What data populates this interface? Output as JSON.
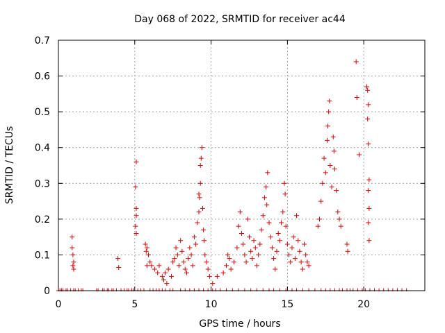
{
  "chart_data": {
    "type": "scatter",
    "title": "Day 068 of 2022, SRMTID for receiver ac44",
    "xlabel": "GPS time / hours",
    "ylabel": "SRMTID / TECUs",
    "xlim": [
      0,
      24
    ],
    "ylim": [
      0,
      0.7
    ],
    "xticks": [
      0,
      5,
      10,
      15,
      20
    ],
    "yticks": [
      0,
      0.1,
      0.2,
      0.3,
      0.4,
      0.5,
      0.6,
      0.7
    ],
    "xtick_labels": [
      "0",
      "5",
      "10",
      "15",
      "20"
    ],
    "ytick_labels": [
      "0",
      "0.1",
      "0.2",
      "0.3",
      "0.4",
      "0.5",
      "0.6",
      "0.7"
    ],
    "grid": true,
    "marker": "plus",
    "color": "#e00000",
    "series": [
      {
        "name": "SRMTID",
        "points": [
          [
            0.9,
            0.15
          ],
          [
            0.9,
            0.12
          ],
          [
            0.95,
            0.1
          ],
          [
            1.0,
            0.08
          ],
          [
            0.95,
            0.07
          ],
          [
            1.0,
            0.06
          ],
          [
            3.9,
            0.09
          ],
          [
            3.95,
            0.065
          ],
          [
            5.1,
            0.36
          ],
          [
            5.05,
            0.29
          ],
          [
            5.1,
            0.23
          ],
          [
            5.1,
            0.21
          ],
          [
            5.05,
            0.18
          ],
          [
            5.1,
            0.16
          ],
          [
            5.7,
            0.13
          ],
          [
            5.8,
            0.12
          ],
          [
            5.75,
            0.11
          ],
          [
            5.9,
            0.1
          ],
          [
            6.0,
            0.08
          ],
          [
            5.8,
            0.07
          ],
          [
            6.1,
            0.07
          ],
          [
            6.3,
            0.06
          ],
          [
            6.5,
            0.05
          ],
          [
            6.6,
            0.07
          ],
          [
            6.8,
            0.04
          ],
          [
            6.9,
            0.03
          ],
          [
            7.0,
            0.05
          ],
          [
            7.1,
            0.02
          ],
          [
            7.2,
            0.06
          ],
          [
            7.4,
            0.04
          ],
          [
            7.5,
            0.08
          ],
          [
            7.6,
            0.09
          ],
          [
            7.7,
            0.12
          ],
          [
            7.8,
            0.1
          ],
          [
            7.9,
            0.07
          ],
          [
            8.0,
            0.14
          ],
          [
            8.1,
            0.11
          ],
          [
            8.2,
            0.08
          ],
          [
            8.3,
            0.06
          ],
          [
            8.4,
            0.05
          ],
          [
            8.5,
            0.09
          ],
          [
            8.6,
            0.12
          ],
          [
            8.7,
            0.1
          ],
          [
            8.8,
            0.07
          ],
          [
            8.9,
            0.15
          ],
          [
            9.0,
            0.13
          ],
          [
            9.1,
            0.19
          ],
          [
            9.2,
            0.22
          ],
          [
            9.25,
            0.26
          ],
          [
            9.3,
            0.3
          ],
          [
            9.35,
            0.37
          ],
          [
            9.4,
            0.4
          ],
          [
            9.3,
            0.35
          ],
          [
            9.2,
            0.27
          ],
          [
            9.45,
            0.23
          ],
          [
            9.5,
            0.17
          ],
          [
            9.55,
            0.14
          ],
          [
            9.6,
            0.1
          ],
          [
            9.7,
            0.08
          ],
          [
            9.8,
            0.06
          ],
          [
            9.9,
            0.04
          ],
          [
            10.1,
            0.02
          ],
          [
            10.4,
            0.04
          ],
          [
            10.8,
            0.05
          ],
          [
            11.0,
            0.07
          ],
          [
            11.1,
            0.1
          ],
          [
            11.2,
            0.09
          ],
          [
            11.3,
            0.06
          ],
          [
            11.5,
            0.08
          ],
          [
            11.7,
            0.12
          ],
          [
            11.8,
            0.18
          ],
          [
            11.9,
            0.22
          ],
          [
            12.0,
            0.16
          ],
          [
            12.1,
            0.13
          ],
          [
            12.2,
            0.1
          ],
          [
            12.3,
            0.08
          ],
          [
            12.4,
            0.2
          ],
          [
            12.5,
            0.15
          ],
          [
            12.6,
            0.11
          ],
          [
            12.7,
            0.09
          ],
          [
            12.8,
            0.14
          ],
          [
            12.9,
            0.12
          ],
          [
            13.0,
            0.07
          ],
          [
            13.1,
            0.1
          ],
          [
            13.2,
            0.13
          ],
          [
            13.3,
            0.17
          ],
          [
            13.4,
            0.21
          ],
          [
            13.5,
            0.26
          ],
          [
            13.6,
            0.29
          ],
          [
            13.7,
            0.33
          ],
          [
            13.65,
            0.24
          ],
          [
            13.8,
            0.19
          ],
          [
            13.9,
            0.15
          ],
          [
            14.0,
            0.12
          ],
          [
            14.1,
            0.09
          ],
          [
            14.2,
            0.06
          ],
          [
            14.3,
            0.11
          ],
          [
            14.4,
            0.16
          ],
          [
            14.5,
            0.14
          ],
          [
            14.6,
            0.19
          ],
          [
            14.7,
            0.22
          ],
          [
            14.8,
            0.3
          ],
          [
            14.85,
            0.27
          ],
          [
            14.9,
            0.18
          ],
          [
            15.0,
            0.13
          ],
          [
            15.1,
            0.1
          ],
          [
            15.2,
            0.08
          ],
          [
            15.3,
            0.12
          ],
          [
            15.4,
            0.15
          ],
          [
            15.5,
            0.09
          ],
          [
            15.6,
            0.21
          ],
          [
            15.7,
            0.14
          ],
          [
            15.8,
            0.11
          ],
          [
            15.9,
            0.08
          ],
          [
            16.0,
            0.06
          ],
          [
            16.1,
            0.13
          ],
          [
            16.2,
            0.1
          ],
          [
            16.3,
            0.08
          ],
          [
            16.4,
            0.07
          ],
          [
            17.0,
            0.18
          ],
          [
            17.1,
            0.2
          ],
          [
            17.2,
            0.25
          ],
          [
            17.3,
            0.3
          ],
          [
            17.4,
            0.37
          ],
          [
            17.5,
            0.33
          ],
          [
            17.6,
            0.42
          ],
          [
            17.65,
            0.46
          ],
          [
            17.7,
            0.5
          ],
          [
            17.75,
            0.53
          ],
          [
            17.8,
            0.35
          ],
          [
            17.9,
            0.29
          ],
          [
            18.0,
            0.43
          ],
          [
            18.05,
            0.39
          ],
          [
            18.1,
            0.34
          ],
          [
            18.2,
            0.28
          ],
          [
            18.3,
            0.22
          ],
          [
            18.4,
            0.2
          ],
          [
            18.5,
            0.18
          ],
          [
            18.9,
            0.13
          ],
          [
            18.95,
            0.11
          ],
          [
            19.5,
            0.64
          ],
          [
            19.55,
            0.54
          ],
          [
            19.7,
            0.38
          ],
          [
            20.2,
            0.57
          ],
          [
            20.25,
            0.56
          ],
          [
            20.3,
            0.52
          ],
          [
            20.25,
            0.48
          ],
          [
            20.3,
            0.41
          ],
          [
            20.35,
            0.31
          ],
          [
            20.3,
            0.28
          ],
          [
            20.35,
            0.23
          ],
          [
            20.3,
            0.19
          ],
          [
            20.35,
            0.14
          ]
        ],
        "zero_points": [
          0.0,
          0.1,
          0.2,
          0.3,
          0.5,
          0.6,
          0.8,
          1.0,
          1.1,
          1.3,
          1.5,
          1.6,
          2.5,
          2.6,
          2.9,
          3.0,
          3.2,
          3.3,
          3.5,
          3.6,
          3.8,
          4.1,
          4.3,
          4.5,
          4.6,
          4.8,
          4.9,
          5.2,
          5.4,
          5.6,
          6.0,
          6.2,
          6.4,
          6.6,
          6.8,
          7.0,
          7.3,
          7.5,
          8.0,
          8.3,
          8.6,
          8.9,
          9.2,
          9.5,
          9.8,
          10.1,
          10.3,
          10.6,
          11.0,
          11.4,
          11.8,
          12.2,
          12.6,
          13.0,
          13.4,
          13.8,
          14.1,
          14.5,
          14.9,
          15.3,
          15.6,
          16.0,
          16.4,
          16.8,
          17.2,
          17.5,
          17.8,
          18.1,
          18.4,
          18.6,
          18.9,
          19.1,
          19.3,
          19.6,
          19.9,
          20.1,
          20.4,
          20.7,
          21.0,
          21.3,
          21.6,
          21.9,
          22.2,
          22.5,
          22.8
        ]
      }
    ]
  }
}
